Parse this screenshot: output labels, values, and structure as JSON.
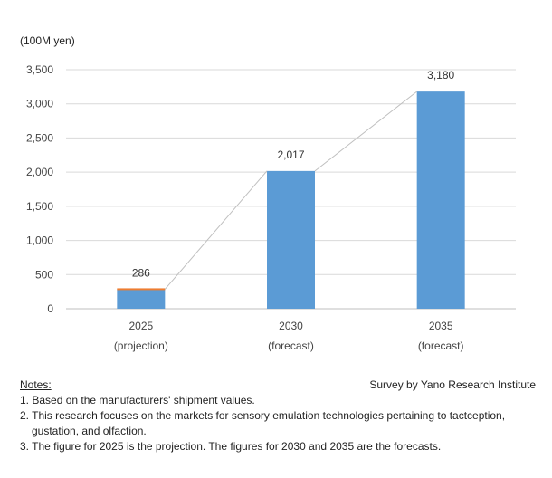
{
  "chart_data": {
    "type": "bar",
    "unit_label": "(100M yen)",
    "categories": [
      {
        "year": "2025",
        "note": "(projection)"
      },
      {
        "year": "2030",
        "note": "(forecast)"
      },
      {
        "year": "2035",
        "note": "(forecast)"
      }
    ],
    "values": [
      286,
      2017,
      3180
    ],
    "value_labels": [
      "286",
      "2,017",
      "3,180"
    ],
    "ylim": [
      0,
      3500
    ],
    "yticks": [
      "0",
      "500",
      "1,000",
      "1,500",
      "2,000",
      "2,500",
      "3,000",
      "3,500"
    ],
    "bar_color": "#5b9bd5",
    "first_bar_top_color": "#ed7d31",
    "trend_line_color": "#bfbfbf",
    "grid": true
  },
  "source": "Survey by Yano Research Institute",
  "notes": {
    "title": "Notes:",
    "items": [
      "1. Based on the manufacturers' shipment values.",
      "2. This research focuses on the markets for sensory emulation technologies pertaining to tactception, gustation, and olfaction.",
      "3. The figure for 2025 is the projection. The figures for 2030 and 2035 are the forecasts."
    ]
  }
}
